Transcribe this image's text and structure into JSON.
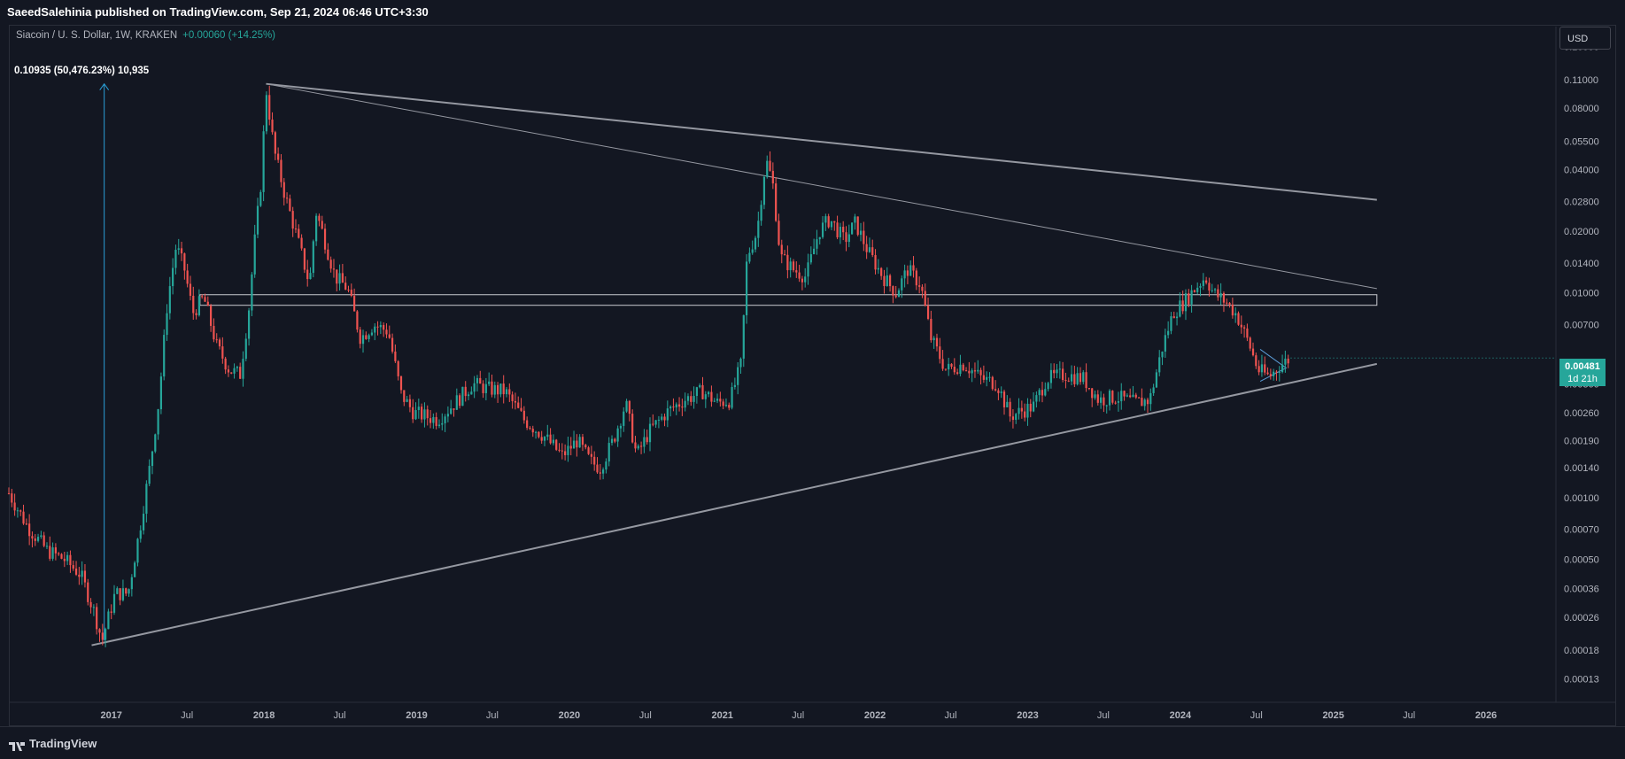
{
  "header": {
    "published": "SaeedSalehinia published on TradingView.com, Sep 21, 2024 06:46 UTC+3:30"
  },
  "symbol": {
    "name": "Siacoin / U. S. Dollar, 1W, KRAKEN",
    "change": "+0.00060 (+14.25%)"
  },
  "measure_label": "0.10935 (50,476.23%) 10,935",
  "price_axis": {
    "currency": "USD",
    "current_price": "0.00481",
    "countdown": "1d 21h"
  },
  "footer": {
    "brand": "TradingView"
  },
  "colors": {
    "background": "#131722",
    "up": "#26a69a",
    "down": "#ef5350",
    "trendline": "#9598a1",
    "measure_arrow": "#2a9fd6"
  },
  "chart_data": {
    "type": "candlestick",
    "scale": "log",
    "ylim": [
      0.0001,
      0.2
    ],
    "y_ticks": [
      "0.16000",
      "0.11000",
      "0.08000",
      "0.05500",
      "0.04000",
      "0.02800",
      "0.02000",
      "0.01400",
      "0.01000",
      "0.00700",
      "0.00360",
      "0.00260",
      "0.00190",
      "0.00140",
      "0.00100",
      "0.00070",
      "0.00050",
      "0.00036",
      "0.00026",
      "0.00018",
      "0.00013"
    ],
    "x_ticks": [
      "2017",
      "Jul",
      "2018",
      "Jul",
      "2019",
      "Jul",
      "2020",
      "Jul",
      "2021",
      "Jul",
      "2022",
      "Jul",
      "2023",
      "Jul",
      "2024",
      "Jul",
      "2025",
      "Jul",
      "2026"
    ],
    "xlim": [
      "2016-05-01",
      "2026-06-15"
    ],
    "price_path": [
      [
        "2016-05-01",
        0.00105
      ],
      [
        "2016-06-15",
        0.00072
      ],
      [
        "2016-08-01",
        0.00055
      ],
      [
        "2016-09-10",
        0.0005
      ],
      [
        "2016-10-20",
        0.00042
      ],
      [
        "2016-11-20",
        0.00028
      ],
      [
        "2016-12-10",
        0.0002
      ],
      [
        "2017-01-10",
        0.00034
      ],
      [
        "2017-02-10",
        0.00034
      ],
      [
        "2017-03-10",
        0.0007
      ],
      [
        "2017-04-05",
        0.0015
      ],
      [
        "2017-04-25",
        0.003
      ],
      [
        "2017-05-15",
        0.009
      ],
      [
        "2017-06-05",
        0.017
      ],
      [
        "2017-06-25",
        0.013
      ],
      [
        "2017-07-15",
        0.008
      ],
      [
        "2017-08-10",
        0.0095
      ],
      [
        "2017-09-10",
        0.0055
      ],
      [
        "2017-10-10",
        0.0042
      ],
      [
        "2017-11-05",
        0.004
      ],
      [
        "2017-11-25",
        0.008
      ],
      [
        "2017-12-10",
        0.018
      ],
      [
        "2017-12-25",
        0.035
      ],
      [
        "2018-01-06",
        0.1
      ],
      [
        "2018-01-25",
        0.05
      ],
      [
        "2018-02-20",
        0.03
      ],
      [
        "2018-03-20",
        0.019
      ],
      [
        "2018-04-20",
        0.011
      ],
      [
        "2018-05-05",
        0.025
      ],
      [
        "2018-05-20",
        0.02
      ],
      [
        "2018-06-20",
        0.012
      ],
      [
        "2018-07-20",
        0.0105
      ],
      [
        "2018-08-20",
        0.006
      ],
      [
        "2018-09-20",
        0.007
      ],
      [
        "2018-10-25",
        0.0065
      ],
      [
        "2018-11-25",
        0.0032
      ],
      [
        "2018-12-25",
        0.0026
      ],
      [
        "2019-02-20",
        0.0024
      ],
      [
        "2019-04-10",
        0.003
      ],
      [
        "2019-05-15",
        0.0036
      ],
      [
        "2019-06-20",
        0.0034
      ],
      [
        "2019-08-01",
        0.0033
      ],
      [
        "2019-09-15",
        0.0024
      ],
      [
        "2019-11-01",
        0.002
      ],
      [
        "2019-12-15",
        0.0016
      ],
      [
        "2020-01-20",
        0.0019
      ],
      [
        "2020-02-20",
        0.0015
      ],
      [
        "2020-03-15",
        0.0014
      ],
      [
        "2020-04-15",
        0.0019
      ],
      [
        "2020-05-15",
        0.0029
      ],
      [
        "2020-06-10",
        0.0016
      ],
      [
        "2020-07-10",
        0.0021
      ],
      [
        "2020-08-20",
        0.0026
      ],
      [
        "2020-10-01",
        0.003
      ],
      [
        "2020-11-15",
        0.0033
      ],
      [
        "2020-12-20",
        0.0029
      ],
      [
        "2021-01-20",
        0.003
      ],
      [
        "2021-02-15",
        0.0045
      ],
      [
        "2021-03-01",
        0.015
      ],
      [
        "2021-03-25",
        0.02
      ],
      [
        "2021-04-15",
        0.045
      ],
      [
        "2021-05-01",
        0.035
      ],
      [
        "2021-05-20",
        0.015
      ],
      [
        "2021-06-20",
        0.013
      ],
      [
        "2021-07-20",
        0.012
      ],
      [
        "2021-08-20",
        0.02
      ],
      [
        "2021-09-15",
        0.023
      ],
      [
        "2021-10-20",
        0.018
      ],
      [
        "2021-11-15",
        0.022
      ],
      [
        "2021-12-15",
        0.016
      ],
      [
        "2022-01-20",
        0.012
      ],
      [
        "2022-02-20",
        0.01
      ],
      [
        "2022-03-20",
        0.013
      ],
      [
        "2022-04-20",
        0.011
      ],
      [
        "2022-05-15",
        0.006
      ],
      [
        "2022-06-20",
        0.0042
      ],
      [
        "2022-08-01",
        0.0045
      ],
      [
        "2022-09-15",
        0.0038
      ],
      [
        "2022-10-20",
        0.0036
      ],
      [
        "2022-11-20",
        0.0025
      ],
      [
        "2023-01-15",
        0.0028
      ],
      [
        "2023-02-15",
        0.0038
      ],
      [
        "2023-04-01",
        0.004
      ],
      [
        "2023-05-15",
        0.0038
      ],
      [
        "2023-06-20",
        0.003
      ],
      [
        "2023-08-01",
        0.0031
      ],
      [
        "2023-09-15",
        0.0029
      ],
      [
        "2023-10-20",
        0.003
      ],
      [
        "2023-11-20",
        0.0055
      ],
      [
        "2023-12-15",
        0.008
      ],
      [
        "2024-01-10",
        0.009
      ],
      [
        "2024-02-05",
        0.0105
      ],
      [
        "2024-03-01",
        0.012
      ],
      [
        "2024-03-20",
        0.01
      ],
      [
        "2024-04-20",
        0.009
      ],
      [
        "2024-05-15",
        0.0078
      ],
      [
        "2024-06-15",
        0.0055
      ],
      [
        "2024-07-05",
        0.0042
      ],
      [
        "2024-08-01",
        0.0039
      ],
      [
        "2024-08-25",
        0.0044
      ],
      [
        "2024-09-21",
        0.00481
      ]
    ],
    "annotations": {
      "upper_trendline": [
        [
          "2018-01-06",
          0.105
        ],
        [
          "2025-04-15",
          0.0285
        ]
      ],
      "inner_trendline": [
        [
          "2018-01-06",
          0.105
        ],
        [
          "2025-04-15",
          0.0105
        ]
      ],
      "lower_trendline": [
        [
          "2016-11-15",
          0.00019
        ],
        [
          "2025-04-15",
          0.0045
        ]
      ],
      "support_zone": {
        "from": "2017-08-01",
        "to": "2025-04-15",
        "low": 0.0087,
        "high": 0.0098
      },
      "measure": {
        "date": "2016-12-15",
        "from": 0.0002,
        "to": 0.105
      },
      "small_wedge": [
        [
          "2024-07-10",
          0.0053
        ],
        [
          "2024-09-10",
          0.0043
        ],
        [
          "2024-07-10",
          0.0037
        ]
      ]
    }
  }
}
